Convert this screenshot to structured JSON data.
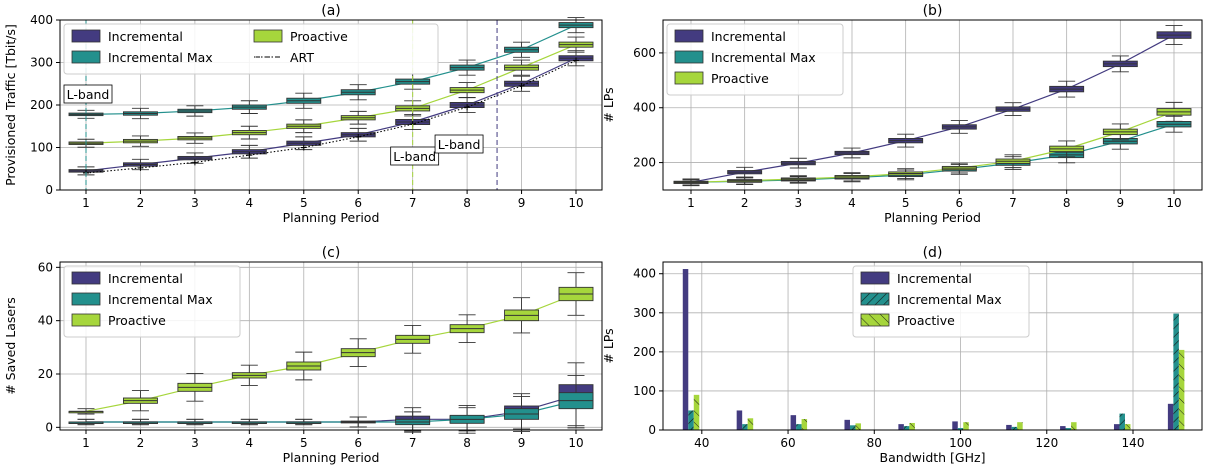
{
  "colors": {
    "incremental": "#433b80",
    "incremental_max": "#23908d",
    "proactive": "#a6d63c",
    "art": "#000000"
  },
  "chart_data": [
    {
      "type": "box",
      "title": "(a)",
      "xlabel": "Planning Period",
      "ylabel": "Provisioned Traffic [Tbit/s]",
      "categories": [
        "1",
        "2",
        "3",
        "4",
        "5",
        "6",
        "7",
        "8",
        "9",
        "10"
      ],
      "ylim": [
        0,
        400
      ],
      "yticks": [
        "0",
        "100",
        "200",
        "300",
        "400"
      ],
      "grid": true,
      "legend_position": "top-left",
      "legend": [
        "Incremental",
        "Incremental Max",
        "Proactive",
        "ART"
      ],
      "series": [
        {
          "name": "Incremental",
          "color": "#433b80",
          "medians": [
            45,
            60,
            75,
            90,
            110,
            130,
            160,
            200,
            250,
            310
          ],
          "iqr": [
            3,
            4,
            4,
            5,
            5,
            5,
            6,
            6,
            6,
            6
          ]
        },
        {
          "name": "Incremental Max",
          "color": "#23908d",
          "medians": [
            178,
            180,
            186,
            195,
            210,
            230,
            255,
            288,
            330,
            388
          ],
          "iqr": [
            3,
            4,
            4,
            5,
            6,
            6,
            6,
            6,
            6,
            6
          ]
        },
        {
          "name": "Proactive",
          "color": "#a6d63c",
          "medians": [
            110,
            115,
            122,
            135,
            150,
            170,
            192,
            235,
            288,
            342
          ],
          "iqr": [
            3,
            4,
            4,
            5,
            5,
            5,
            6,
            6,
            6,
            6
          ]
        },
        {
          "name": "ART",
          "color": "#000000",
          "values": [
            40,
            52,
            65,
            82,
            100,
            125,
            155,
            195,
            245,
            305
          ]
        }
      ],
      "annotations": [
        {
          "text": "L-band",
          "x": 1,
          "color": "#23908d"
        },
        {
          "text": "L-band",
          "x": 7,
          "color": "#a6d63c"
        },
        {
          "text": "L-band",
          "x": 8.55,
          "color": "#433b80"
        }
      ]
    },
    {
      "type": "box",
      "title": "(b)",
      "xlabel": "Planning Period",
      "ylabel": "# LPs",
      "categories": [
        "1",
        "2",
        "3",
        "4",
        "5",
        "6",
        "7",
        "8",
        "9",
        "10"
      ],
      "ylim": [
        100,
        720
      ],
      "yticks": [
        "200",
        "400",
        "600"
      ],
      "grid": true,
      "legend_position": "top-left",
      "legend": [
        "Incremental",
        "Incremental Max",
        "Proactive"
      ],
      "series": [
        {
          "name": "Incremental",
          "color": "#433b80",
          "medians": [
            128,
            165,
            198,
            235,
            280,
            330,
            395,
            468,
            560,
            665
          ],
          "iqr": [
            4,
            6,
            6,
            6,
            8,
            8,
            8,
            10,
            10,
            12
          ]
        },
        {
          "name": "Incremental Max",
          "color": "#23908d",
          "medians": [
            128,
            132,
            137,
            145,
            155,
            175,
            198,
            228,
            278,
            340
          ],
          "iqr": [
            3,
            4,
            4,
            5,
            6,
            6,
            8,
            10,
            10,
            10
          ]
        },
        {
          "name": "Proactive",
          "color": "#a6d63c",
          "medians": [
            128,
            134,
            140,
            148,
            160,
            180,
            205,
            250,
            312,
            385
          ],
          "iqr": [
            3,
            4,
            4,
            5,
            6,
            6,
            8,
            10,
            10,
            12
          ]
        }
      ]
    },
    {
      "type": "box",
      "title": "(c)",
      "xlabel": "Planning Period",
      "ylabel": "# Saved Lasers",
      "categories": [
        "1",
        "2",
        "3",
        "4",
        "5",
        "6",
        "7",
        "8",
        "9",
        "10"
      ],
      "ylim": [
        -1,
        62
      ],
      "yticks": [
        "0",
        "20",
        "40",
        "60"
      ],
      "grid": true,
      "legend_position": "top-left",
      "legend": [
        "Incremental",
        "Incremental Max",
        "Proactive"
      ],
      "series": [
        {
          "name": "Incremental",
          "color": "#433b80",
          "medians": [
            2,
            2,
            2,
            2,
            2,
            2,
            3,
            3,
            6,
            12
          ],
          "iqr": [
            0,
            0,
            0,
            0,
            0,
            0.3,
            1.2,
            1.2,
            2,
            4
          ]
        },
        {
          "name": "Incremental Max",
          "color": "#23908d",
          "medians": [
            2,
            2,
            2,
            2,
            2,
            2,
            2,
            3,
            5,
            10
          ],
          "iqr": [
            0,
            0,
            0,
            0,
            0,
            0.3,
            1,
            1.5,
            2,
            3
          ]
        },
        {
          "name": "Proactive",
          "color": "#a6d63c",
          "medians": [
            6,
            10,
            15,
            19.5,
            23,
            28,
            33,
            37,
            42,
            50
          ],
          "iqr": [
            0,
            1,
            1.5,
            1,
            1.5,
            1.5,
            1.5,
            1.5,
            2,
            2.5
          ]
        }
      ]
    },
    {
      "type": "bar",
      "title": "(d)",
      "xlabel": "Bandwidth [GHz]",
      "ylabel": "# LPs",
      "xlim": [
        31,
        156
      ],
      "xticks": [
        "40",
        "60",
        "80",
        "100",
        "120",
        "140"
      ],
      "ylim": [
        0,
        430
      ],
      "yticks": [
        "0",
        "100",
        "200",
        "300",
        "400"
      ],
      "grid": true,
      "legend_position": "top-center",
      "legend": [
        "Incremental",
        "Incremental Max",
        "Proactive"
      ],
      "x": [
        37.5,
        50,
        62.5,
        75,
        87.5,
        100,
        112.5,
        125,
        137.5,
        150
      ],
      "series": [
        {
          "name": "Incremental",
          "color": "#433b80",
          "values": [
            412,
            50,
            38,
            26,
            15,
            22,
            13,
            10,
            15,
            67
          ]
        },
        {
          "name": "Incremental Max",
          "color": "#23908d",
          "values": [
            50,
            15,
            15,
            12,
            10,
            5,
            8,
            5,
            42,
            298
          ]
        },
        {
          "name": "Proactive",
          "color": "#a6d63c",
          "values": [
            90,
            30,
            28,
            17,
            18,
            20,
            20,
            20,
            15,
            205
          ]
        }
      ]
    }
  ]
}
